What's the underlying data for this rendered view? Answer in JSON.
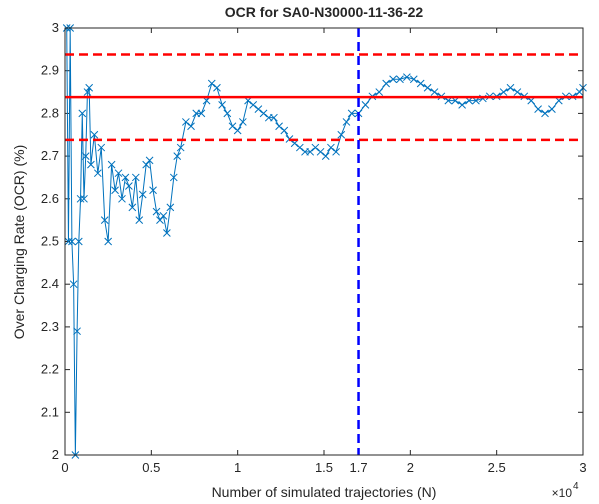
{
  "chart_data": {
    "type": "line",
    "title": "OCR for SA0-N30000-11-36-22",
    "x_label": "Number of simulated trajectories (N)",
    "y_label": "Over Charging Rate (OCR) (%)",
    "x_multiplier_base": "×10",
    "x_multiplier_exponent": "4",
    "xlim": [
      0,
      3
    ],
    "ylim": [
      2,
      3
    ],
    "xticks": [
      0,
      0.5,
      1,
      1.5,
      1.7,
      2,
      2.5,
      3
    ],
    "yticks": [
      2,
      2.1,
      2.2,
      2.3,
      2.4,
      2.5,
      2.6,
      2.7,
      2.8,
      2.9,
      3
    ],
    "grid": false,
    "box": true,
    "x": [
      0.01,
      0.02,
      0.03,
      0.04,
      0.05,
      0.06,
      0.07,
      0.08,
      0.09,
      0.1,
      0.11,
      0.12,
      0.13,
      0.14,
      0.15,
      0.17,
      0.19,
      0.21,
      0.23,
      0.25,
      0.27,
      0.29,
      0.31,
      0.33,
      0.35,
      0.37,
      0.39,
      0.41,
      0.43,
      0.45,
      0.47,
      0.49,
      0.51,
      0.53,
      0.55,
      0.57,
      0.59,
      0.61,
      0.63,
      0.65,
      0.67,
      0.7,
      0.73,
      0.76,
      0.79,
      0.82,
      0.85,
      0.88,
      0.91,
      0.94,
      0.97,
      1.0,
      1.03,
      1.06,
      1.09,
      1.12,
      1.15,
      1.18,
      1.21,
      1.24,
      1.27,
      1.3,
      1.33,
      1.36,
      1.39,
      1.42,
      1.45,
      1.48,
      1.51,
      1.54,
      1.57,
      1.6,
      1.63,
      1.66,
      1.7,
      1.74,
      1.78,
      1.82,
      1.86,
      1.9,
      1.94,
      1.98,
      2.02,
      2.06,
      2.1,
      2.14,
      2.18,
      2.22,
      2.26,
      2.3,
      2.34,
      2.38,
      2.42,
      2.46,
      2.5,
      2.54,
      2.58,
      2.62,
      2.66,
      2.7,
      2.74,
      2.78,
      2.82,
      2.86,
      2.9,
      2.94,
      2.98,
      3.0
    ],
    "series": [
      {
        "color": "#0072bd",
        "marker": "x",
        "values": [
          3.0,
          2.5,
          3.0,
          2.5,
          2.4,
          2.0,
          2.29,
          2.5,
          2.6,
          2.8,
          2.6,
          2.7,
          2.85,
          2.86,
          2.68,
          2.75,
          2.66,
          2.72,
          2.55,
          2.5,
          2.68,
          2.62,
          2.66,
          2.6,
          2.65,
          2.63,
          2.58,
          2.65,
          2.55,
          2.61,
          2.68,
          2.69,
          2.62,
          2.57,
          2.55,
          2.56,
          2.52,
          2.58,
          2.65,
          2.7,
          2.72,
          2.78,
          2.77,
          2.8,
          2.8,
          2.83,
          2.87,
          2.86,
          2.82,
          2.8,
          2.77,
          2.76,
          2.78,
          2.83,
          2.82,
          2.81,
          2.8,
          2.79,
          2.79,
          2.77,
          2.76,
          2.74,
          2.73,
          2.72,
          2.71,
          2.71,
          2.72,
          2.71,
          2.7,
          2.72,
          2.71,
          2.75,
          2.78,
          2.8,
          2.8,
          2.82,
          2.84,
          2.85,
          2.87,
          2.88,
          2.88,
          2.885,
          2.88,
          2.87,
          2.86,
          2.85,
          2.84,
          2.83,
          2.83,
          2.82,
          2.83,
          2.83,
          2.835,
          2.84,
          2.84,
          2.85,
          2.86,
          2.85,
          2.84,
          2.83,
          2.81,
          2.8,
          2.81,
          2.83,
          2.84,
          2.84,
          2.85,
          2.86
        ]
      }
    ],
    "hlines": [
      {
        "value": 2.838,
        "color": "#ff0000",
        "style": "solid"
      },
      {
        "value": 2.938,
        "color": "#ff0000",
        "style": "dashed"
      },
      {
        "value": 2.738,
        "color": "#ff0000",
        "style": "dashed"
      }
    ],
    "vlines": [
      {
        "value": 1.7,
        "color": "#0000ff",
        "style": "dashed"
      }
    ]
  }
}
